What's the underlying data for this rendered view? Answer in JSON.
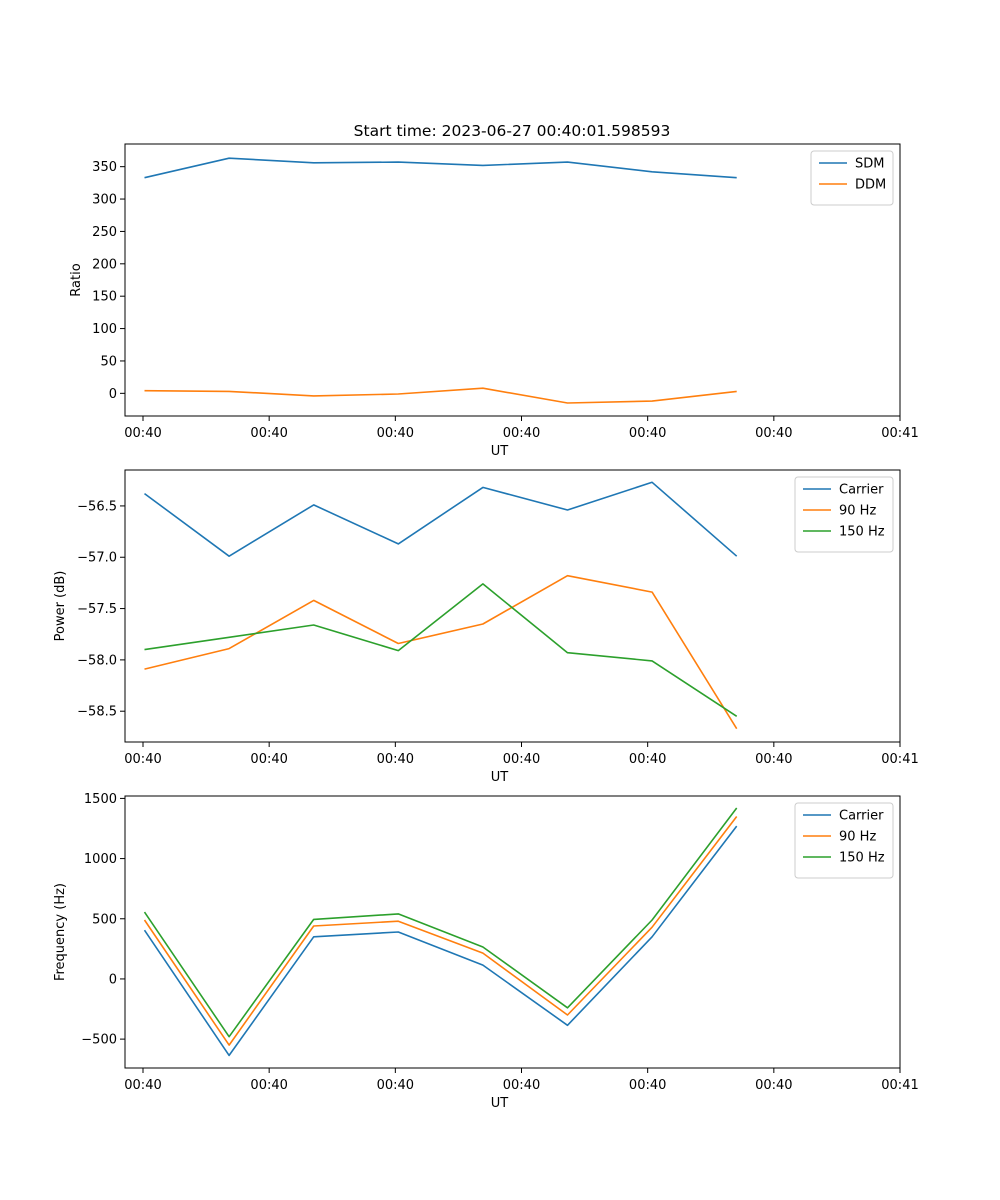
{
  "title": "Start time: 2023-06-27 00:40:01.598593",
  "chart_data": [
    {
      "type": "line",
      "xlabel": "UT",
      "ylabel": "Ratio",
      "x_tick_labels": [
        "00:40",
        "00:40",
        "00:40",
        "00:40",
        "00:40",
        "00:40",
        "00:41"
      ],
      "xlim": [
        -0.23,
        8.93
      ],
      "ylim": [
        -35,
        385
      ],
      "y_ticks": [
        0,
        50,
        100,
        150,
        200,
        250,
        300,
        350
      ],
      "y_tick_labels": [
        "0",
        "50",
        "100",
        "150",
        "200",
        "250",
        "300",
        "350"
      ],
      "legend_position": "upper right",
      "grid": false,
      "x": [
        0,
        1,
        2,
        3,
        4,
        5,
        6,
        7
      ],
      "series": [
        {
          "name": "SDM",
          "color": "#1f77b4",
          "values": [
            333,
            363,
            356,
            357,
            352,
            357,
            342,
            333
          ]
        },
        {
          "name": "DDM",
          "color": "#ff7f0e",
          "values": [
            4,
            3,
            -4,
            -1,
            8,
            -15,
            -12,
            3
          ]
        }
      ]
    },
    {
      "type": "line",
      "xlabel": "UT",
      "ylabel": "Power (dB)",
      "x_tick_labels": [
        "00:40",
        "00:40",
        "00:40",
        "00:40",
        "00:40",
        "00:40",
        "00:41"
      ],
      "xlim": [
        -0.23,
        8.93
      ],
      "ylim": [
        -58.8,
        -56.15
      ],
      "y_ticks": [
        -58.5,
        -58.0,
        -57.5,
        -57.0,
        -56.5
      ],
      "y_tick_labels": [
        "−58.5",
        "−58.0",
        "−57.5",
        "−57.0",
        "−56.5"
      ],
      "legend_position": "upper right",
      "grid": false,
      "x": [
        0,
        1,
        2,
        3,
        4,
        5,
        6,
        7
      ],
      "series": [
        {
          "name": "Carrier",
          "color": "#1f77b4",
          "values": [
            -56.38,
            -56.99,
            -56.49,
            -56.87,
            -56.32,
            -56.54,
            -56.27,
            -56.99
          ]
        },
        {
          "name": "90 Hz",
          "color": "#ff7f0e",
          "values": [
            -58.09,
            -57.89,
            -57.42,
            -57.84,
            -57.65,
            -57.18,
            -57.34,
            -58.67
          ]
        },
        {
          "name": "150 Hz",
          "color": "#2ca02c",
          "values": [
            -57.9,
            -57.78,
            -57.66,
            -57.91,
            -57.26,
            -57.93,
            -58.01,
            -58.55
          ]
        }
      ]
    },
    {
      "type": "line",
      "xlabel": "UT",
      "ylabel": "Frequency (Hz)",
      "x_tick_labels": [
        "00:40",
        "00:40",
        "00:40",
        "00:40",
        "00:40",
        "00:40",
        "00:41"
      ],
      "xlim": [
        -0.23,
        8.93
      ],
      "ylim": [
        -740,
        1520
      ],
      "y_ticks": [
        -500,
        0,
        500,
        1000,
        1500
      ],
      "y_tick_labels": [
        "−500",
        "0",
        "500",
        "1000",
        "1500"
      ],
      "legend_position": "upper right",
      "grid": false,
      "x": [
        0,
        1,
        2,
        3,
        4,
        5,
        6,
        7
      ],
      "series": [
        {
          "name": "Carrier",
          "color": "#1f77b4",
          "values": [
            405,
            -635,
            350,
            390,
            115,
            -385,
            350,
            1270
          ]
        },
        {
          "name": "90 Hz",
          "color": "#ff7f0e",
          "values": [
            490,
            -550,
            440,
            480,
            215,
            -300,
            430,
            1350
          ]
        },
        {
          "name": "150 Hz",
          "color": "#2ca02c",
          "values": [
            555,
            -480,
            495,
            540,
            265,
            -240,
            490,
            1420
          ]
        }
      ]
    }
  ]
}
